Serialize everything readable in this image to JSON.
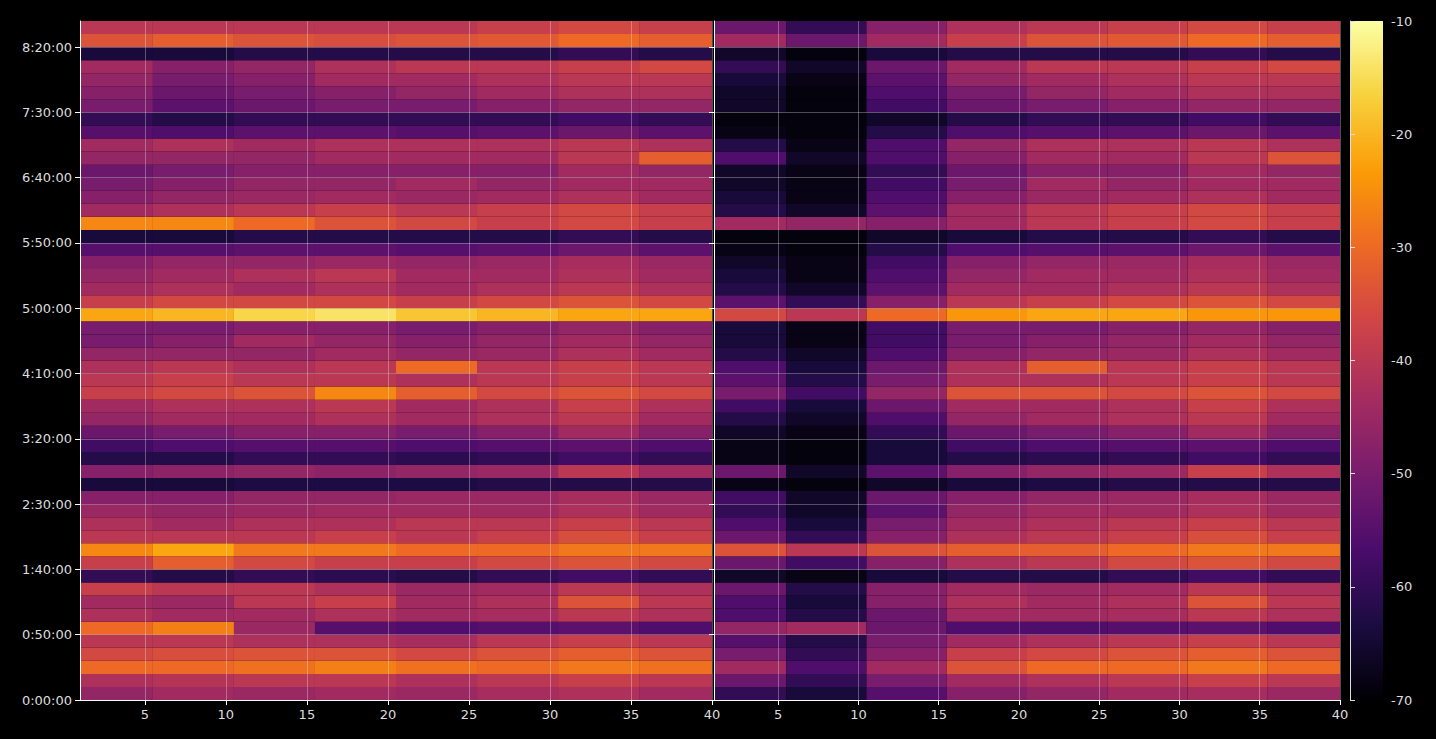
{
  "chart_data": {
    "type": "heatmap",
    "x": [
      3,
      8,
      13,
      18,
      23,
      28,
      33,
      38
    ],
    "y": [
      300,
      900,
      1500,
      2100,
      2700,
      3300,
      3900,
      4500,
      5100,
      5700,
      6300,
      6900,
      7500,
      8100,
      8700,
      9300,
      9900,
      10500,
      11100,
      11700,
      12300,
      12900,
      13500,
      14100,
      14700,
      15300,
      15900,
      16500,
      17100,
      17700,
      18300,
      18900,
      19500,
      20100,
      20700,
      21300,
      21900,
      22500,
      23100,
      23700,
      24300,
      24900,
      25500,
      26100,
      26700,
      27300,
      27900,
      28500,
      29100,
      29700,
      30300,
      30900
    ],
    "panels": [
      {
        "values": [
          [
            -46,
            -44,
            -45,
            -44,
            -45,
            -43,
            -42,
            -44
          ],
          [
            -42,
            -41,
            -40,
            -40,
            -42,
            -40,
            -38,
            -40
          ],
          [
            -30,
            -30,
            -29,
            -27,
            -29,
            -30,
            -28,
            -29
          ],
          [
            -36,
            -35,
            -34,
            -34,
            -36,
            -34,
            -32,
            -34
          ],
          [
            -40,
            -40,
            -42,
            -42,
            -43,
            -40,
            -38,
            -40
          ],
          [
            -30,
            -27,
            -45,
            -55,
            -56,
            -55,
            -54,
            -56
          ],
          [
            -42,
            -44,
            -44,
            -42,
            -44,
            -43,
            -40,
            -42
          ],
          [
            -44,
            -45,
            -40,
            -38,
            -44,
            -42,
            -34,
            -40
          ],
          [
            -38,
            -40,
            -40,
            -42,
            -45,
            -44,
            -40,
            -42
          ],
          [
            -60,
            -62,
            -60,
            -61,
            -62,
            -60,
            -58,
            -60
          ],
          [
            -38,
            -32,
            -36,
            -38,
            -38,
            -36,
            -34,
            -36
          ],
          [
            -26,
            -22,
            -28,
            -28,
            -30,
            -30,
            -28,
            -28
          ],
          [
            -40,
            -40,
            -40,
            -38,
            -40,
            -38,
            -35,
            -38
          ],
          [
            -42,
            -44,
            -42,
            -42,
            -40,
            -40,
            -38,
            -40
          ],
          [
            -45,
            -46,
            -45,
            -44,
            -44,
            -44,
            -42,
            -44
          ],
          [
            -48,
            -48,
            -46,
            -46,
            -45,
            -45,
            -43,
            -45
          ],
          [
            -64,
            -64,
            -63,
            -63,
            -63,
            -62,
            -62,
            -62
          ],
          [
            -48,
            -47,
            -46,
            -47,
            -46,
            -45,
            -40,
            -44
          ],
          [
            -62,
            -62,
            -60,
            -60,
            -61,
            -60,
            -58,
            -60
          ],
          [
            -58,
            -56,
            -55,
            -55,
            -56,
            -55,
            -54,
            -56
          ],
          [
            -52,
            -50,
            -48,
            -48,
            -50,
            -48,
            -44,
            -48
          ],
          [
            -46,
            -44,
            -44,
            -42,
            -44,
            -42,
            -40,
            -44
          ],
          [
            -44,
            -42,
            -42,
            -40,
            -44,
            -42,
            -38,
            -42
          ],
          [
            -38,
            -36,
            -34,
            -26,
            -32,
            -36,
            -34,
            -36
          ],
          [
            -40,
            -38,
            -40,
            -40,
            -42,
            -40,
            -38,
            -40
          ],
          [
            -42,
            -40,
            -42,
            -40,
            -30,
            -40,
            -38,
            -40
          ],
          [
            -46,
            -46,
            -46,
            -44,
            -46,
            -45,
            -42,
            -44
          ],
          [
            -50,
            -48,
            -44,
            -46,
            -48,
            -46,
            -44,
            -46
          ],
          [
            -50,
            -50,
            -48,
            -48,
            -50,
            -48,
            -46,
            -48
          ],
          [
            -22,
            -20,
            -16,
            -14,
            -18,
            -20,
            -22,
            -22
          ],
          [
            -38,
            -36,
            -36,
            -36,
            -38,
            -36,
            -34,
            -36
          ],
          [
            -44,
            -42,
            -44,
            -42,
            -44,
            -42,
            -40,
            -42
          ],
          [
            -46,
            -44,
            -42,
            -40,
            -44,
            -44,
            -42,
            -44
          ],
          [
            -48,
            -46,
            -46,
            -45,
            -46,
            -45,
            -43,
            -45
          ],
          [
            -55,
            -55,
            -54,
            -54,
            -55,
            -54,
            -52,
            -54
          ],
          [
            -64,
            -64,
            -62,
            -62,
            -62,
            -62,
            -60,
            -62
          ],
          [
            -26,
            -26,
            -30,
            -34,
            -36,
            -38,
            -36,
            -38
          ],
          [
            -44,
            -42,
            -40,
            -38,
            -40,
            -38,
            -36,
            -38
          ],
          [
            -48,
            -46,
            -45,
            -44,
            -45,
            -44,
            -42,
            -44
          ],
          [
            -50,
            -48,
            -46,
            -46,
            -44,
            -46,
            -44,
            -44
          ],
          [
            -52,
            -50,
            -48,
            -48,
            -48,
            -48,
            -44,
            -46
          ],
          [
            -46,
            -46,
            -46,
            -44,
            -44,
            -44,
            -40,
            -32
          ],
          [
            -44,
            -42,
            -44,
            -42,
            -42,
            -42,
            -40,
            -42
          ],
          [
            -55,
            -56,
            -54,
            -54,
            -55,
            -54,
            -52,
            -54
          ],
          [
            -60,
            -62,
            -60,
            -60,
            -60,
            -60,
            -58,
            -60
          ],
          [
            -50,
            -54,
            -52,
            -50,
            -50,
            -48,
            -46,
            -46
          ],
          [
            -48,
            -52,
            -50,
            -48,
            -46,
            -44,
            -42,
            -42
          ],
          [
            -46,
            -50,
            -48,
            -44,
            -44,
            -42,
            -40,
            -40
          ],
          [
            -44,
            -48,
            -46,
            -42,
            -40,
            -40,
            -38,
            -36
          ],
          [
            -64,
            -64,
            -62,
            -62,
            -62,
            -62,
            -60,
            -62
          ],
          [
            -34,
            -32,
            -34,
            -35,
            -34,
            -33,
            -30,
            -32
          ],
          [
            -40,
            -40,
            -40,
            -40,
            -40,
            -38,
            -36,
            -38
          ]
        ]
      },
      {
        "values": [
          [
            -60,
            -64,
            -55,
            -48,
            -46,
            -44,
            -43,
            -45
          ],
          [
            -52,
            -60,
            -50,
            -44,
            -42,
            -40,
            -38,
            -40
          ],
          [
            -44,
            -56,
            -44,
            -34,
            -30,
            -30,
            -28,
            -30
          ],
          [
            -50,
            -60,
            -48,
            -38,
            -36,
            -34,
            -32,
            -34
          ],
          [
            -55,
            -62,
            -50,
            -44,
            -42,
            -40,
            -38,
            -40
          ],
          [
            -46,
            -44,
            -52,
            -56,
            -56,
            -55,
            -54,
            -56
          ],
          [
            -56,
            -62,
            -52,
            -44,
            -44,
            -43,
            -40,
            -42
          ],
          [
            -56,
            -64,
            -48,
            -42,
            -44,
            -42,
            -34,
            -40
          ],
          [
            -52,
            -62,
            -48,
            -44,
            -45,
            -44,
            -40,
            -42
          ],
          [
            -66,
            -68,
            -64,
            -62,
            -62,
            -60,
            -58,
            -60
          ],
          [
            -52,
            -58,
            -48,
            -42,
            -40,
            -36,
            -34,
            -36
          ],
          [
            -34,
            -40,
            -34,
            -32,
            -32,
            -30,
            -28,
            -28
          ],
          [
            -52,
            -60,
            -48,
            -42,
            -40,
            -38,
            -35,
            -38
          ],
          [
            -56,
            -64,
            -50,
            -44,
            -42,
            -40,
            -38,
            -40
          ],
          [
            -60,
            -66,
            -54,
            -46,
            -44,
            -44,
            -42,
            -44
          ],
          [
            -58,
            -66,
            -52,
            -48,
            -46,
            -45,
            -43,
            -45
          ],
          [
            -68,
            -69,
            -66,
            -64,
            -63,
            -62,
            -62,
            -62
          ],
          [
            -52,
            -66,
            -54,
            -48,
            -46,
            -45,
            -38,
            -42
          ],
          [
            -68,
            -69,
            -64,
            -62,
            -61,
            -60,
            -58,
            -60
          ],
          [
            -68,
            -69,
            -64,
            -58,
            -56,
            -55,
            -54,
            -56
          ],
          [
            -66,
            -68,
            -60,
            -52,
            -50,
            -48,
            -44,
            -48
          ],
          [
            -62,
            -66,
            -56,
            -46,
            -44,
            -42,
            -40,
            -44
          ],
          [
            -58,
            -64,
            -52,
            -44,
            -44,
            -42,
            -38,
            -42
          ],
          [
            -50,
            -58,
            -46,
            -34,
            -34,
            -36,
            -34,
            -36
          ],
          [
            -54,
            -62,
            -50,
            -42,
            -42,
            -40,
            -38,
            -40
          ],
          [
            -56,
            -64,
            -52,
            -42,
            -32,
            -40,
            -38,
            -40
          ],
          [
            -62,
            -66,
            -56,
            -48,
            -46,
            -45,
            -42,
            -44
          ],
          [
            -64,
            -68,
            -58,
            -50,
            -48,
            -46,
            -44,
            -46
          ],
          [
            -64,
            -68,
            -58,
            -50,
            -50,
            -48,
            -46,
            -48
          ],
          [
            -36,
            -40,
            -30,
            -24,
            -22,
            -22,
            -24,
            -24
          ],
          [
            -54,
            -60,
            -48,
            -40,
            -38,
            -36,
            -34,
            -36
          ],
          [
            -62,
            -66,
            -54,
            -44,
            -44,
            -42,
            -40,
            -42
          ],
          [
            -64,
            -68,
            -56,
            -46,
            -44,
            -44,
            -42,
            -44
          ],
          [
            -66,
            -68,
            -58,
            -48,
            -46,
            -45,
            -43,
            -45
          ],
          [
            -68,
            -69,
            -62,
            -56,
            -55,
            -54,
            -52,
            -54
          ],
          [
            -69,
            -69,
            -66,
            -64,
            -62,
            -62,
            -60,
            -62
          ],
          [
            -44,
            -46,
            -48,
            -44,
            -40,
            -38,
            -36,
            -38
          ],
          [
            -62,
            -66,
            -54,
            -44,
            -40,
            -38,
            -36,
            -38
          ],
          [
            -64,
            -68,
            -56,
            -48,
            -45,
            -44,
            -42,
            -44
          ],
          [
            -66,
            -68,
            -58,
            -50,
            -44,
            -46,
            -44,
            -44
          ],
          [
            -66,
            -68,
            -60,
            -52,
            -48,
            -48,
            -44,
            -46
          ],
          [
            -56,
            -66,
            -56,
            -48,
            -44,
            -44,
            -40,
            -34
          ],
          [
            -62,
            -68,
            -56,
            -46,
            -42,
            -42,
            -40,
            -42
          ],
          [
            -68,
            -69,
            -62,
            -56,
            -55,
            -54,
            -52,
            -54
          ],
          [
            -69,
            -69,
            -66,
            -62,
            -60,
            -60,
            -58,
            -60
          ],
          [
            -66,
            -69,
            -58,
            -52,
            -50,
            -48,
            -46,
            -46
          ],
          [
            -66,
            -69,
            -56,
            -50,
            -46,
            -44,
            -42,
            -42
          ],
          [
            -64,
            -68,
            -54,
            -46,
            -44,
            -42,
            -40,
            -40
          ],
          [
            -60,
            -66,
            -52,
            -44,
            -40,
            -40,
            -38,
            -36
          ],
          [
            -66,
            -69,
            -64,
            -62,
            -62,
            -62,
            -60,
            -62
          ],
          [
            -44,
            -52,
            -44,
            -38,
            -34,
            -33,
            -30,
            -32
          ],
          [
            -52,
            -60,
            -48,
            -42,
            -40,
            -38,
            -36,
            -38
          ]
        ]
      }
    ],
    "xlim": [
      1,
      40
    ],
    "xticks": [
      5,
      10,
      15,
      20,
      25,
      30,
      35,
      40
    ],
    "ylim": [
      0,
      31200
    ],
    "yticks": [
      {
        "value": 0,
        "label": "0:00:00"
      },
      {
        "value": 3000,
        "label": "0:50:00"
      },
      {
        "value": 6000,
        "label": "1:40:00"
      },
      {
        "value": 9000,
        "label": "2:30:00"
      },
      {
        "value": 12000,
        "label": "3:20:00"
      },
      {
        "value": 15000,
        "label": "4:10:00"
      },
      {
        "value": 18000,
        "label": "5:00:00"
      },
      {
        "value": 21000,
        "label": "5:50:00"
      },
      {
        "value": 24000,
        "label": "6:40:00"
      },
      {
        "value": 27000,
        "label": "7:30:00"
      },
      {
        "value": 30000,
        "label": "8:20:00"
      }
    ],
    "colorbar": {
      "lim": [
        -70,
        -10
      ],
      "ticks": [
        -70,
        -60,
        -50,
        -40,
        -30,
        -20,
        -10
      ]
    },
    "grid": true
  }
}
